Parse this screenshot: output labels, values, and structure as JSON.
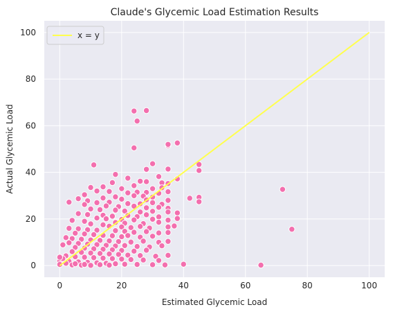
{
  "chart_data": {
    "type": "scatter",
    "title": "Claude's Glycemic Load Estimation Results",
    "xlabel": "Estimated Glycemic Load",
    "ylabel": "Actual Glycemic Load",
    "xlim": [
      -5,
      105
    ],
    "ylim": [
      -5,
      105
    ],
    "xticks": [
      0,
      20,
      40,
      60,
      80,
      100
    ],
    "yticks": [
      0,
      20,
      40,
      60,
      80,
      100
    ],
    "xtick_labels": [
      "0",
      "20",
      "40",
      "60",
      "80",
      "100"
    ],
    "ytick_labels": [
      "0",
      "20",
      "40",
      "60",
      "80",
      "100"
    ],
    "grid": true,
    "background": "#eaeaf2",
    "point_color": "#f36fae",
    "line_color": "#ffff4d",
    "legend": {
      "position": "top-left",
      "entries": [
        "x = y"
      ]
    },
    "reference_line": {
      "name": "x = y",
      "points": [
        [
          0,
          0
        ],
        [
          100,
          100
        ]
      ]
    },
    "points": [
      [
        24,
        66.3
      ],
      [
        28,
        66.5
      ],
      [
        25,
        62
      ],
      [
        24,
        50.5
      ],
      [
        35,
        51.5
      ],
      [
        35,
        52
      ],
      [
        38,
        52.6
      ],
      [
        11,
        43.2
      ],
      [
        30,
        43.7
      ],
      [
        45,
        43.4
      ],
      [
        45,
        40.8
      ],
      [
        28,
        41.3
      ],
      [
        35,
        41.4
      ],
      [
        18,
        39.1
      ],
      [
        32,
        38.2
      ],
      [
        38,
        37.2
      ],
      [
        22,
        37.5
      ],
      [
        26,
        36.2
      ],
      [
        17,
        35.6
      ],
      [
        28,
        36.0
      ],
      [
        33,
        35.5
      ],
      [
        35,
        35.2
      ],
      [
        24,
        34.3
      ],
      [
        10,
        33.5
      ],
      [
        14,
        33.8
      ],
      [
        20,
        33.0
      ],
      [
        30,
        33.0
      ],
      [
        33,
        33.4
      ],
      [
        72,
        32.7
      ],
      [
        12,
        32.0
      ],
      [
        16,
        31.8
      ],
      [
        22,
        31.2
      ],
      [
        25,
        31.5
      ],
      [
        28,
        31.4
      ],
      [
        32,
        31.0
      ],
      [
        35,
        31.7
      ],
      [
        8,
        30.4
      ],
      [
        18,
        29.5
      ],
      [
        24,
        30.0
      ],
      [
        27,
        29.8
      ],
      [
        30,
        29.4
      ],
      [
        42,
        28.9
      ],
      [
        45,
        29.3
      ],
      [
        14,
        29.0
      ],
      [
        6,
        28.7
      ],
      [
        9,
        27.8
      ],
      [
        20,
        28.5
      ],
      [
        28,
        28.2
      ],
      [
        35,
        28.0
      ],
      [
        45,
        27.4
      ],
      [
        12,
        27.0
      ],
      [
        16,
        27.2
      ],
      [
        22,
        26.6
      ],
      [
        26,
        26.5
      ],
      [
        30,
        27.0
      ],
      [
        33,
        26.3
      ],
      [
        8,
        26.2
      ],
      [
        3,
        27.2
      ],
      [
        15,
        25.6
      ],
      [
        19,
        25.3
      ],
      [
        24,
        25.5
      ],
      [
        28,
        24.8
      ],
      [
        32,
        25.0
      ],
      [
        35,
        24.6
      ],
      [
        10,
        24.3
      ],
      [
        13,
        24.0
      ],
      [
        18,
        23.8
      ],
      [
        21,
        23.4
      ],
      [
        26,
        23.0
      ],
      [
        30,
        23.3
      ],
      [
        35,
        23.0
      ],
      [
        38,
        22.6
      ],
      [
        6,
        22.3
      ],
      [
        9,
        21.9
      ],
      [
        14,
        21.6
      ],
      [
        17,
        21.2
      ],
      [
        22,
        21.5
      ],
      [
        25,
        21.0
      ],
      [
        28,
        21.8
      ],
      [
        32,
        20.9
      ],
      [
        12,
        20.4
      ],
      [
        15,
        20.1
      ],
      [
        20,
        19.8
      ],
      [
        24,
        19.6
      ],
      [
        30,
        19.9
      ],
      [
        35,
        19.5
      ],
      [
        38,
        20.2
      ],
      [
        4,
        19.4
      ],
      [
        8,
        19.0
      ],
      [
        18,
        18.5
      ],
      [
        21,
        18.2
      ],
      [
        27,
        18.0
      ],
      [
        32,
        18.6
      ],
      [
        37,
        17.0
      ],
      [
        10,
        17.9
      ],
      [
        14,
        17.5
      ],
      [
        16,
        16.9
      ],
      [
        20,
        16.6
      ],
      [
        23,
        16.3
      ],
      [
        26,
        16.8
      ],
      [
        29,
        16.1
      ],
      [
        35,
        16.6
      ],
      [
        75,
        15.6
      ],
      [
        3,
        16.0
      ],
      [
        6,
        15.8
      ],
      [
        9,
        15.4
      ],
      [
        12,
        15.2
      ],
      [
        18,
        15.0
      ],
      [
        21,
        14.7
      ],
      [
        24,
        14.3
      ],
      [
        28,
        14.6
      ],
      [
        32,
        14.0
      ],
      [
        35,
        14.2
      ],
      [
        5,
        13.9
      ],
      [
        8,
        13.6
      ],
      [
        11,
        13.3
      ],
      [
        14,
        13.0
      ],
      [
        17,
        12.8
      ],
      [
        20,
        12.4
      ],
      [
        22,
        12.9
      ],
      [
        26,
        12.2
      ],
      [
        30,
        12.6
      ],
      [
        2,
        12.0
      ],
      [
        4,
        11.6
      ],
      [
        7,
        11.3
      ],
      [
        10,
        11.0
      ],
      [
        13,
        10.8
      ],
      [
        16,
        10.6
      ],
      [
        19,
        10.3
      ],
      [
        23,
        10.1
      ],
      [
        27,
        10.5
      ],
      [
        32,
        10.0
      ],
      [
        35,
        10.4
      ],
      [
        3,
        9.8
      ],
      [
        6,
        9.5
      ],
      [
        9,
        9.2
      ],
      [
        12,
        9.0
      ],
      [
        15,
        8.7
      ],
      [
        18,
        8.4
      ],
      [
        21,
        8.6
      ],
      [
        25,
        8.2
      ],
      [
        29,
        8.0
      ],
      [
        33,
        8.5
      ],
      [
        1,
        8.9
      ],
      [
        5,
        7.8
      ],
      [
        8,
        7.5
      ],
      [
        11,
        7.2
      ],
      [
        14,
        7.0
      ],
      [
        17,
        6.8
      ],
      [
        20,
        6.5
      ],
      [
        24,
        6.2
      ],
      [
        28,
        6.6
      ],
      [
        4,
        6.0
      ],
      [
        7,
        5.7
      ],
      [
        10,
        5.4
      ],
      [
        13,
        5.2
      ],
      [
        16,
        5.0
      ],
      [
        19,
        4.8
      ],
      [
        22,
        4.5
      ],
      [
        26,
        4.3
      ],
      [
        31,
        4.0
      ],
      [
        35,
        4.4
      ],
      [
        2,
        4.2
      ],
      [
        5,
        3.8
      ],
      [
        8,
        3.6
      ],
      [
        11,
        3.4
      ],
      [
        14,
        3.2
      ],
      [
        17,
        3.0
      ],
      [
        20,
        2.8
      ],
      [
        23,
        2.6
      ],
      [
        27,
        2.4
      ],
      [
        32,
        2.2
      ],
      [
        0,
        2.0
      ],
      [
        3,
        1.8
      ],
      [
        6,
        1.6
      ],
      [
        9,
        1.4
      ],
      [
        12,
        1.2
      ],
      [
        15,
        1.0
      ],
      [
        18,
        0.8
      ],
      [
        21,
        0.6
      ],
      [
        25,
        0.5
      ],
      [
        30,
        0.4
      ],
      [
        34,
        0.3
      ],
      [
        0,
        0.5
      ],
      [
        4,
        0.3
      ],
      [
        7,
        0.2
      ],
      [
        10,
        0.1
      ],
      [
        13,
        0.4
      ],
      [
        16,
        0.2
      ],
      [
        40,
        0.6
      ],
      [
        65,
        0.2
      ],
      [
        1,
        3.0
      ],
      [
        2,
        1.0
      ],
      [
        0,
        3.6
      ],
      [
        5,
        0.8
      ],
      [
        8,
        0.5
      ]
    ]
  }
}
